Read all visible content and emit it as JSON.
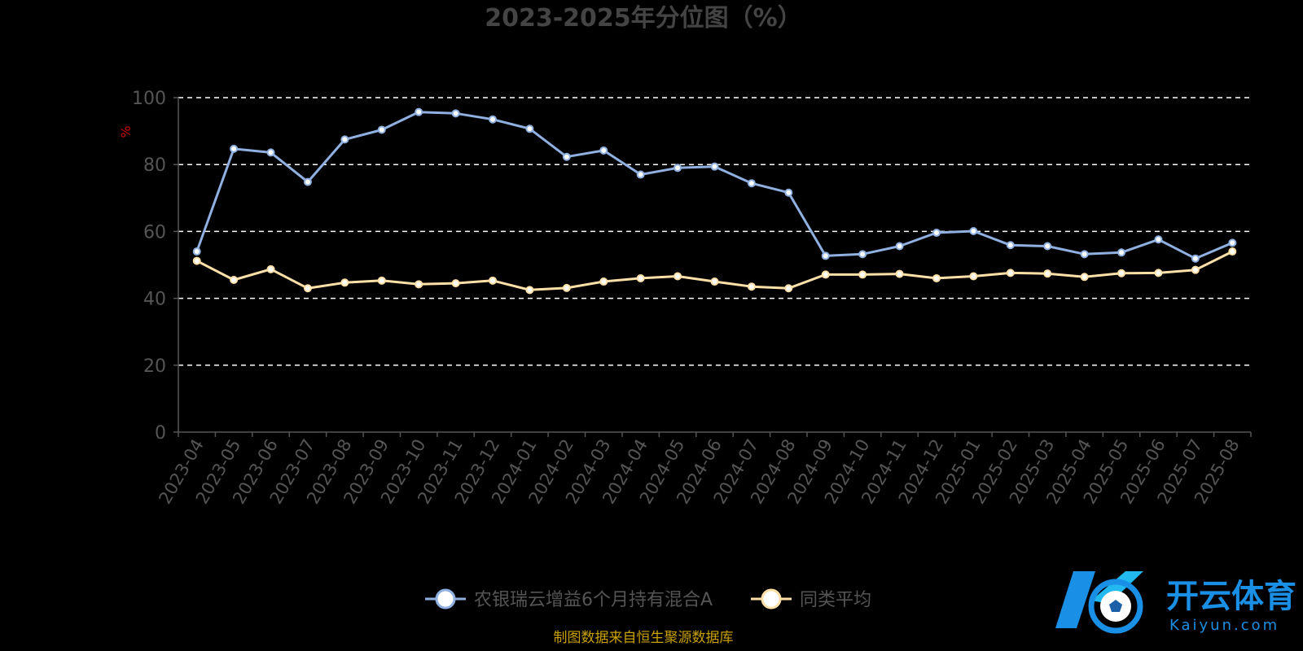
{
  "chart_data": {
    "type": "line",
    "title": "2023-2025年分位图（%）",
    "ylabel": "%",
    "ylim": [
      0,
      100
    ],
    "yticks": [
      "0",
      "20",
      "40",
      "60",
      "80",
      "100"
    ],
    "grid": true,
    "legend_position": "bottom",
    "categories": [
      "2023-04",
      "2023-05",
      "2023-06",
      "2023-07",
      "2023-08",
      "2023-09",
      "2023-10",
      "2023-11",
      "2023-12",
      "2024-01",
      "2024-02",
      "2024-03",
      "2024-04",
      "2024-05",
      "2024-06",
      "2024-07",
      "2024-08",
      "2024-09",
      "2024-10",
      "2024-11",
      "2024-12",
      "2025-01",
      "2025-02",
      "2025-03",
      "2025-04",
      "2025-05",
      "2025-06",
      "2025-07",
      "2025-08"
    ],
    "series": [
      {
        "name": "农银瑞云增益6个月持有混合A",
        "color": "#8fb0e0",
        "values": [
          54.0,
          84.7,
          83.6,
          74.8,
          87.5,
          90.4,
          95.7,
          95.3,
          93.5,
          90.7,
          82.3,
          84.2,
          77.0,
          79.0,
          79.4,
          74.4,
          71.6,
          52.7,
          53.2,
          55.6,
          59.6,
          60.1,
          55.9,
          55.6,
          53.2,
          53.7,
          57.6,
          51.9,
          56.6
        ]
      },
      {
        "name": "同类平均",
        "color": "#ffe0a8",
        "values": [
          51.2,
          45.5,
          48.7,
          43.0,
          44.7,
          45.3,
          44.2,
          44.5,
          45.3,
          42.5,
          43.1,
          45.0,
          46.0,
          46.6,
          45.0,
          43.5,
          43.0,
          47.1,
          47.1,
          47.3,
          46.0,
          46.6,
          47.6,
          47.4,
          46.4,
          47.5,
          47.6,
          48.5,
          54.0
        ]
      }
    ]
  },
  "footer": {
    "source": "制图数据来自恒生聚源数据库"
  },
  "watermark": {
    "brand": "开云体育",
    "url": "Kaiyun.com"
  }
}
